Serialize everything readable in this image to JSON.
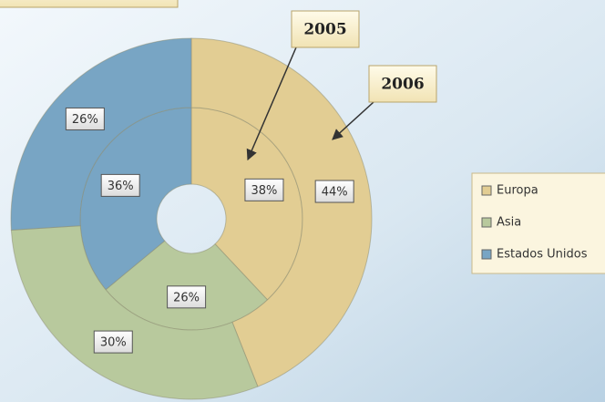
{
  "chart_data": {
    "type": "donut",
    "categories": [
      "Europa",
      "Asia",
      "Estados Unidos"
    ],
    "colors": [
      "#e2cd93",
      "#b8c99d",
      "#78a5c4"
    ],
    "series": [
      {
        "name": "2005",
        "values": [
          38,
          26,
          36
        ],
        "value_labels": [
          "38%",
          "26%",
          "36%"
        ]
      },
      {
        "name": "2006",
        "values": [
          44,
          30,
          26
        ],
        "value_labels": [
          "44%",
          "30%",
          "26%"
        ]
      }
    ],
    "legend": "right"
  }
}
